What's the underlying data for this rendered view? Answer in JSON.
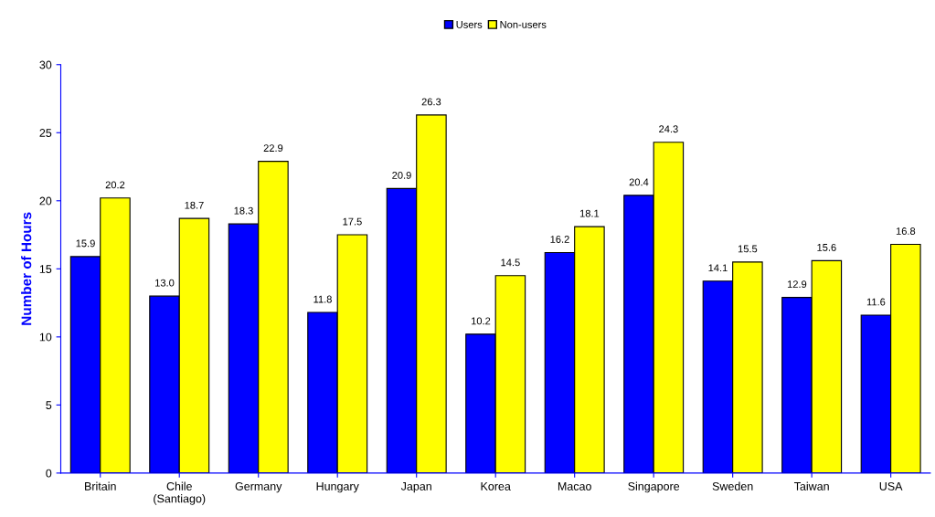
{
  "chart_data": {
    "type": "bar",
    "ylabel": "Number of Hours",
    "categories": [
      "Britain",
      "Chile\n(Santiago)",
      "Germany",
      "Hungary",
      "Japan",
      "Korea",
      "Macao",
      "Singapore",
      "Sweden",
      "Taiwan",
      "USA"
    ],
    "series": [
      {
        "name": "Users",
        "color": "#0000ff",
        "values": [
          15.9,
          13.0,
          18.3,
          11.8,
          20.9,
          10.2,
          16.2,
          20.4,
          14.1,
          12.9,
          11.6
        ],
        "value_labels": [
          "15.9",
          "13.0",
          "18.3",
          "11.8",
          "20.9",
          "10.2",
          "16.2",
          "20.4",
          "14.1",
          "12.9",
          "11.6"
        ]
      },
      {
        "name": "Non-users",
        "color": "#ffff00",
        "values": [
          20.2,
          18.7,
          22.9,
          17.5,
          26.3,
          14.5,
          18.1,
          24.3,
          15.5,
          15.6,
          16.8
        ],
        "value_labels": [
          "20.2",
          "18.7",
          "22.9",
          "17.5",
          "26.3",
          "14.5",
          "18.1",
          "24.3",
          "15.5",
          "15.6",
          "16.8"
        ]
      }
    ],
    "ylim": [
      0,
      30
    ],
    "yticks": [
      0,
      5,
      10,
      15,
      20,
      25,
      30
    ],
    "legend": "top",
    "grid": false
  }
}
